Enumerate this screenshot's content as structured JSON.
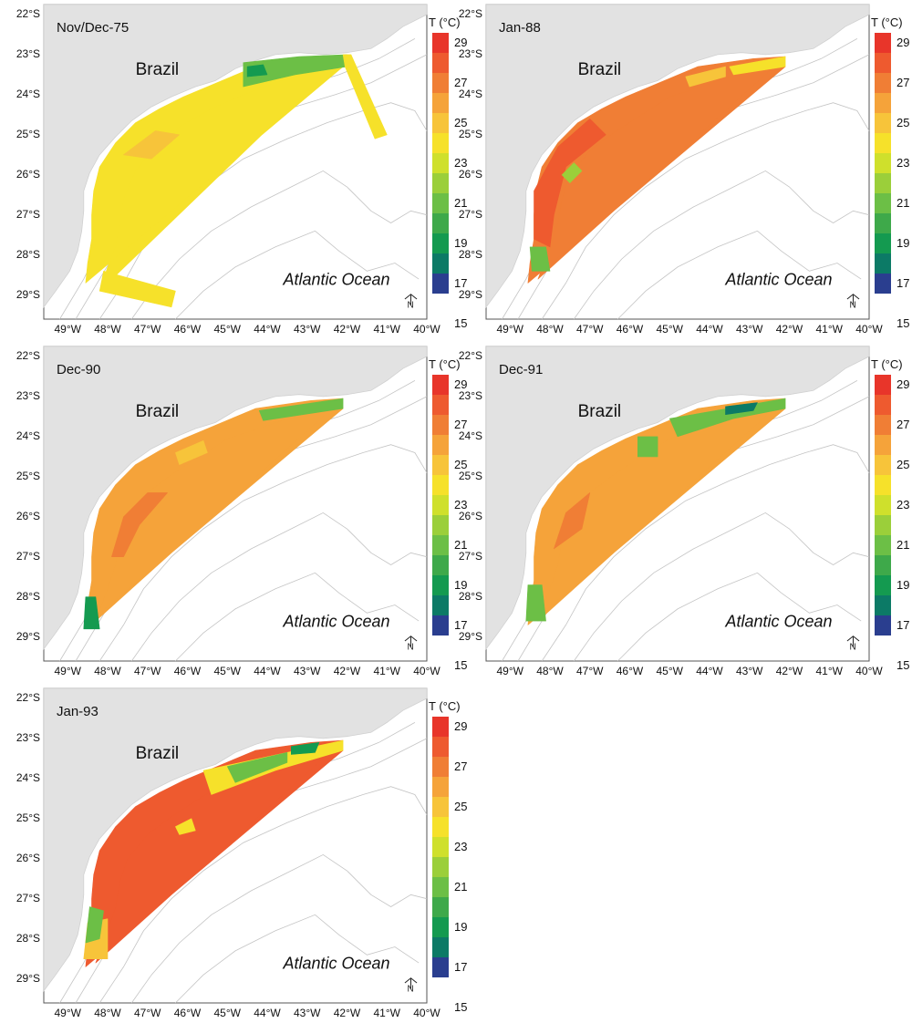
{
  "figure": {
    "colorbar": {
      "title": "T (°C)",
      "ticks": [
        "29",
        "27",
        "25",
        "23",
        "21",
        "19",
        "17",
        "15"
      ],
      "colors": [
        "#e8352a",
        "#ee5a2f",
        "#f07e35",
        "#f5a33a",
        "#f7c43a",
        "#f6e12a",
        "#cfe02c",
        "#9bcf3a",
        "#6cbf46",
        "#3ea94a",
        "#149a50",
        "#0c7a66",
        "#2a3e8f"
      ]
    },
    "lat_labels": [
      "22°S",
      "23°S",
      "24°S",
      "25°S",
      "26°S",
      "27°S",
      "28°S",
      "29°S"
    ],
    "lon_labels": [
      "49°W",
      "48°W",
      "47°W",
      "46°W",
      "45°W",
      "44°W",
      "43°W",
      "42°W",
      "41°W",
      "40°W"
    ],
    "land_label": "Brazil",
    "ocean_label": "Atlantic Ocean",
    "north_label": "N",
    "panels": [
      {
        "title": "Nov/Dec-75"
      },
      {
        "title": "Jan-88"
      },
      {
        "title": "Dec-90"
      },
      {
        "title": "Dec-91"
      },
      {
        "title": "Jan-93"
      }
    ]
  }
}
